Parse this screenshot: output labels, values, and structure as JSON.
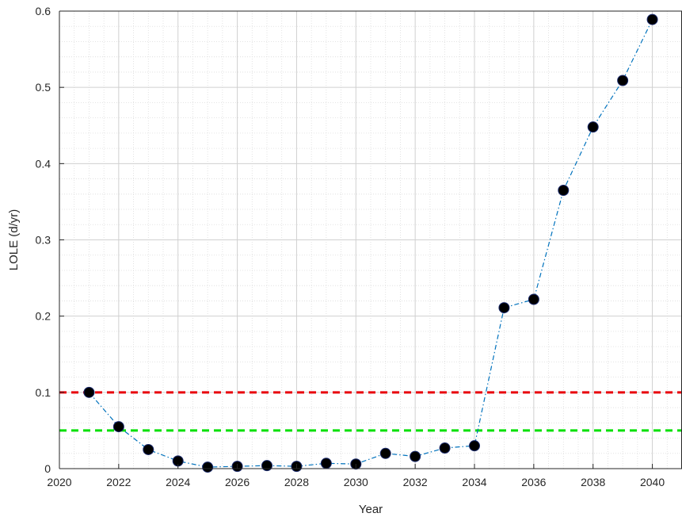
{
  "chart_data": {
    "type": "line",
    "title": "",
    "xlabel": "Year",
    "ylabel": "LOLE (d/yr)",
    "xlim": [
      2020,
      2041
    ],
    "ylim": [
      0,
      0.6
    ],
    "x_ticks": [
      2020,
      2022,
      2024,
      2026,
      2028,
      2030,
      2032,
      2034,
      2036,
      2038,
      2040
    ],
    "y_ticks": [
      0,
      0.1,
      0.2,
      0.3,
      0.4,
      0.5,
      0.6
    ],
    "x_tick_labels": [
      "2020",
      "2022",
      "2024",
      "2026",
      "2028",
      "2030",
      "2032",
      "2034",
      "2036",
      "2038",
      "2040"
    ],
    "y_tick_labels": [
      "0",
      "0.1",
      "0.2",
      "0.3",
      "0.4",
      "0.5",
      "0.6"
    ],
    "grid": true,
    "minor_grid": true,
    "series": [
      {
        "style": "dash-dot line with circle markers",
        "line_color": "#0072BD",
        "marker_color": "#000000",
        "x": [
          2021,
          2022,
          2023,
          2024,
          2025,
          2026,
          2027,
          2028,
          2029,
          2030,
          2031,
          2032,
          2033,
          2034,
          2035,
          2036,
          2037,
          2038,
          2039,
          2040
        ],
        "y": [
          0.1,
          0.055,
          0.025,
          0.01,
          0.002,
          0.003,
          0.004,
          0.003,
          0.007,
          0.006,
          0.02,
          0.016,
          0.027,
          0.03,
          0.211,
          0.222,
          0.365,
          0.448,
          0.509,
          0.589
        ]
      }
    ],
    "reference_lines": [
      {
        "y": 0.1,
        "color": "#E8000B",
        "style": "dashed"
      },
      {
        "y": 0.05,
        "color": "#00E000",
        "style": "dashed"
      }
    ]
  }
}
